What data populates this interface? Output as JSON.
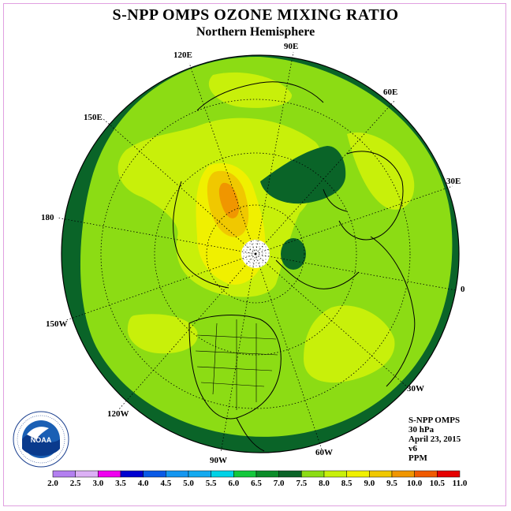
{
  "title": "S-NPP OMPS OZONE MIXING RATIO",
  "subtitle": "Northern Hemisphere",
  "info": {
    "instrument": "S-NPP OMPS",
    "level": "30 hPa",
    "date": "April 23, 2015",
    "version": "v6",
    "units": "PPM"
  },
  "logo": {
    "text": "NOAA",
    "ring_text": "NATIONAL OCEANIC AND ATMOSPHERIC ADMINISTRATION · U.S. DEPARTMENT OF COMMERCE"
  },
  "longitude_labels": [
    {
      "id": "lon-90e",
      "text": "90E"
    },
    {
      "id": "lon-60e",
      "text": "60E"
    },
    {
      "id": "lon-30e",
      "text": "30E"
    },
    {
      "id": "lon-0",
      "text": "0"
    },
    {
      "id": "lon-30w",
      "text": "30W"
    },
    {
      "id": "lon-60w",
      "text": "60W"
    },
    {
      "id": "lon-90w",
      "text": "90W"
    },
    {
      "id": "lon-120w",
      "text": "120W"
    },
    {
      "id": "lon-150w",
      "text": "150W"
    },
    {
      "id": "lon-180",
      "text": "180"
    },
    {
      "id": "lon-150e",
      "text": "150E"
    },
    {
      "id": "lon-120e",
      "text": "120E"
    }
  ],
  "colorbar": {
    "labels": [
      "2.0",
      "2.5",
      "3.0",
      "3.5",
      "4.0",
      "4.5",
      "5.0",
      "5.5",
      "6.0",
      "6.5",
      "7.0",
      "7.5",
      "8.0",
      "8.5",
      "9.0",
      "9.5",
      "10.0",
      "10.5",
      "11.0"
    ],
    "colors": [
      "#b37ff0",
      "#dcb0f5",
      "#f000f0",
      "#0000d0",
      "#0a5ae6",
      "#1496f0",
      "#14aaf0",
      "#00d2e6",
      "#14c83c",
      "#0a8c28",
      "#0a6428",
      "#8cdc14",
      "#c8f00a",
      "#f0f000",
      "#f0c800",
      "#f09600",
      "#f05a00",
      "#e60000",
      "#8c5a32"
    ]
  },
  "chart_data": {
    "type": "heatmap",
    "title": "S-NPP OMPS OZONE MIXING RATIO",
    "subtitle": "Northern Hemisphere",
    "projection": "north polar stereographic",
    "variable": "ozone mixing ratio",
    "units": "PPM",
    "level": "30 hPa",
    "date": "April 23, 2015",
    "range": [
      2.0,
      11.0
    ],
    "regions": [
      {
        "area": "outer ring / low latitudes",
        "value_range": [
          6.5,
          7.0
        ]
      },
      {
        "area": "broad mid-latitude band",
        "value_range": [
          7.0,
          7.5
        ]
      },
      {
        "area": "patches near pole, North Pacific, Atlantic",
        "value_range": [
          7.5,
          8.0
        ]
      },
      {
        "area": "East Siberia / Okhotsk maximum",
        "value_range": [
          8.0,
          9.0
        ]
      },
      {
        "area": "northern Russia / Scandinavia minimum",
        "value_range": [
          6.5,
          7.0
        ]
      }
    ]
  }
}
